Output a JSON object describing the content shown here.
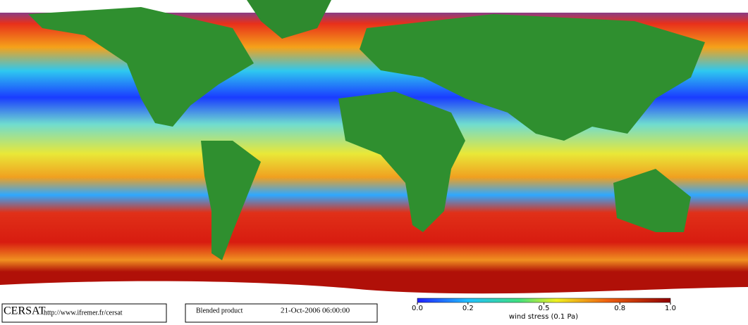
{
  "logo": "CERSAT",
  "url": "http://www.ifremer.fr/cersat",
  "product": "Blended product",
  "date": "21-Oct-2006 06:00:00",
  "colorbar": {
    "label": "wind stress (0.1 Pa)",
    "lim": [
      0,
      1
    ],
    "ticks": [
      {
        "value": 0,
        "label": "0.0"
      },
      0.2,
      0.5,
      0.8,
      {
        "value": 1,
        "label": "1.0"
      }
    ]
  }
}
